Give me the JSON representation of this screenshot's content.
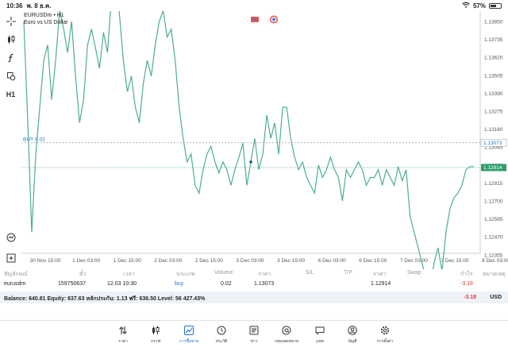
{
  "status": {
    "time": "10:36",
    "date": "พ. 8 ธ.ค.",
    "battery": "57%",
    "battery_level": 0.57
  },
  "chart": {
    "symbol": "EURUSDm • H1",
    "description": "Euro vs US Dollar",
    "line_color": "#4caf8f",
    "buy_label": "BUY 0.02",
    "buy_price": "1.13073",
    "current_price": "1.12914",
    "price_ticks": [
      "1.13850",
      "1.13735",
      "1.13620",
      "1.13505",
      "1.13390",
      "1.13275",
      "1.13160",
      "1.13045",
      "1.12930",
      "1.12815",
      "1.12700",
      "1.12585",
      "1.12470",
      "1.12355"
    ],
    "time_ticks": [
      "30 Nov 15:00",
      "1 Dec 03:00",
      "1 Dec 15:00",
      "2 Dec 03:00",
      "2 Dec 15:00",
      "3 Dec 03:00",
      "3 Dec 15:00",
      "6 Dec 03:00",
      "6 Dec 15:00",
      "7 Dec 03:00",
      "7 Dec 15:00",
      "8 Dec 03:00"
    ]
  },
  "chart_data": {
    "type": "line",
    "series": [
      {
        "values": [
          1.1385,
          1.132,
          1.125,
          1.13,
          1.133,
          1.136,
          1.137,
          1.1335,
          1.136,
          1.1392,
          1.138,
          1.1365,
          1.1385,
          1.135,
          1.132,
          1.1335,
          1.137,
          1.138,
          1.1368,
          1.1355,
          1.1378,
          1.1365,
          1.14,
          1.1415,
          1.139,
          1.136,
          1.134,
          1.135,
          1.133,
          1.132,
          1.1345,
          1.136,
          1.135,
          1.137,
          1.1385,
          1.1392,
          1.1375,
          1.138,
          1.136,
          1.133,
          1.131,
          1.1295,
          1.13,
          1.128,
          1.1275,
          1.129,
          1.13,
          1.1305,
          1.1295,
          1.1288,
          1.1295,
          1.129,
          1.128,
          1.129,
          1.1298,
          1.1307,
          1.128,
          1.1295,
          1.131,
          1.129,
          1.13,
          1.1325,
          1.131,
          1.132,
          1.13,
          1.133,
          1.133,
          1.131,
          1.1298,
          1.129,
          1.1295,
          1.1285,
          1.128,
          1.1275,
          1.1293,
          1.1285,
          1.129,
          1.1298,
          1.129,
          1.1285,
          1.127,
          1.129,
          1.1285,
          1.129,
          1.1295,
          1.129,
          1.128,
          1.1285,
          1.1285,
          1.129,
          1.128,
          1.129,
          1.1285,
          1.128,
          1.1292,
          1.1283,
          1.129,
          1.126,
          1.125,
          1.124,
          1.123,
          1.122,
          1.1215,
          1.123,
          1.124,
          1.1225,
          1.125,
          1.1265,
          1.1272,
          1.1275,
          1.128,
          1.129,
          1.1292,
          1.1292
        ],
        "buy_index": 57
      }
    ],
    "ylim": [
      1.123,
      1.1392
    ]
  },
  "positions": {
    "headers": [
      "สัญลักษณ์",
      "ตั๋ว",
      "เวลา",
      "ประเภท",
      "Volume",
      "ราคา",
      "S/L",
      "T/P",
      "ราคา",
      "Swap",
      "กำไร",
      "หมายเหตุ"
    ],
    "rows": [
      {
        "symbol": "eurusdm",
        "ticket": "159750637",
        "time": "12.03 10:30",
        "type": "buy",
        "volume": "0.02",
        "open_price": "1.13073",
        "sl": "",
        "tp": "",
        "price": "1.12914",
        "swap": "",
        "profit": "-3.18",
        "comment": ""
      }
    ]
  },
  "balance": {
    "text": "Balance: 640.81  Equity: 637.63  หลักประกัน: 1.13  ฟรี: 636.50  Level: 56 427.43%",
    "profit": "-3.18",
    "currency": "USD"
  },
  "nav": [
    {
      "label": "ราคา",
      "icon": "quotes-icon"
    },
    {
      "label": "กราฟ",
      "icon": "chart-candles-icon"
    },
    {
      "label": "การซื้อขาย",
      "icon": "trade-icon",
      "active": true
    },
    {
      "label": "ประวัติ",
      "icon": "history-icon"
    },
    {
      "label": "ข่าว",
      "icon": "news-icon"
    },
    {
      "label": "กล่องจดหมาย",
      "icon": "mailbox-icon"
    },
    {
      "label": "แชท",
      "icon": "chat-icon"
    },
    {
      "label": "บัญชี",
      "icon": "account-icon"
    },
    {
      "label": "การตั้งค่า",
      "icon": "settings-icon"
    }
  ]
}
